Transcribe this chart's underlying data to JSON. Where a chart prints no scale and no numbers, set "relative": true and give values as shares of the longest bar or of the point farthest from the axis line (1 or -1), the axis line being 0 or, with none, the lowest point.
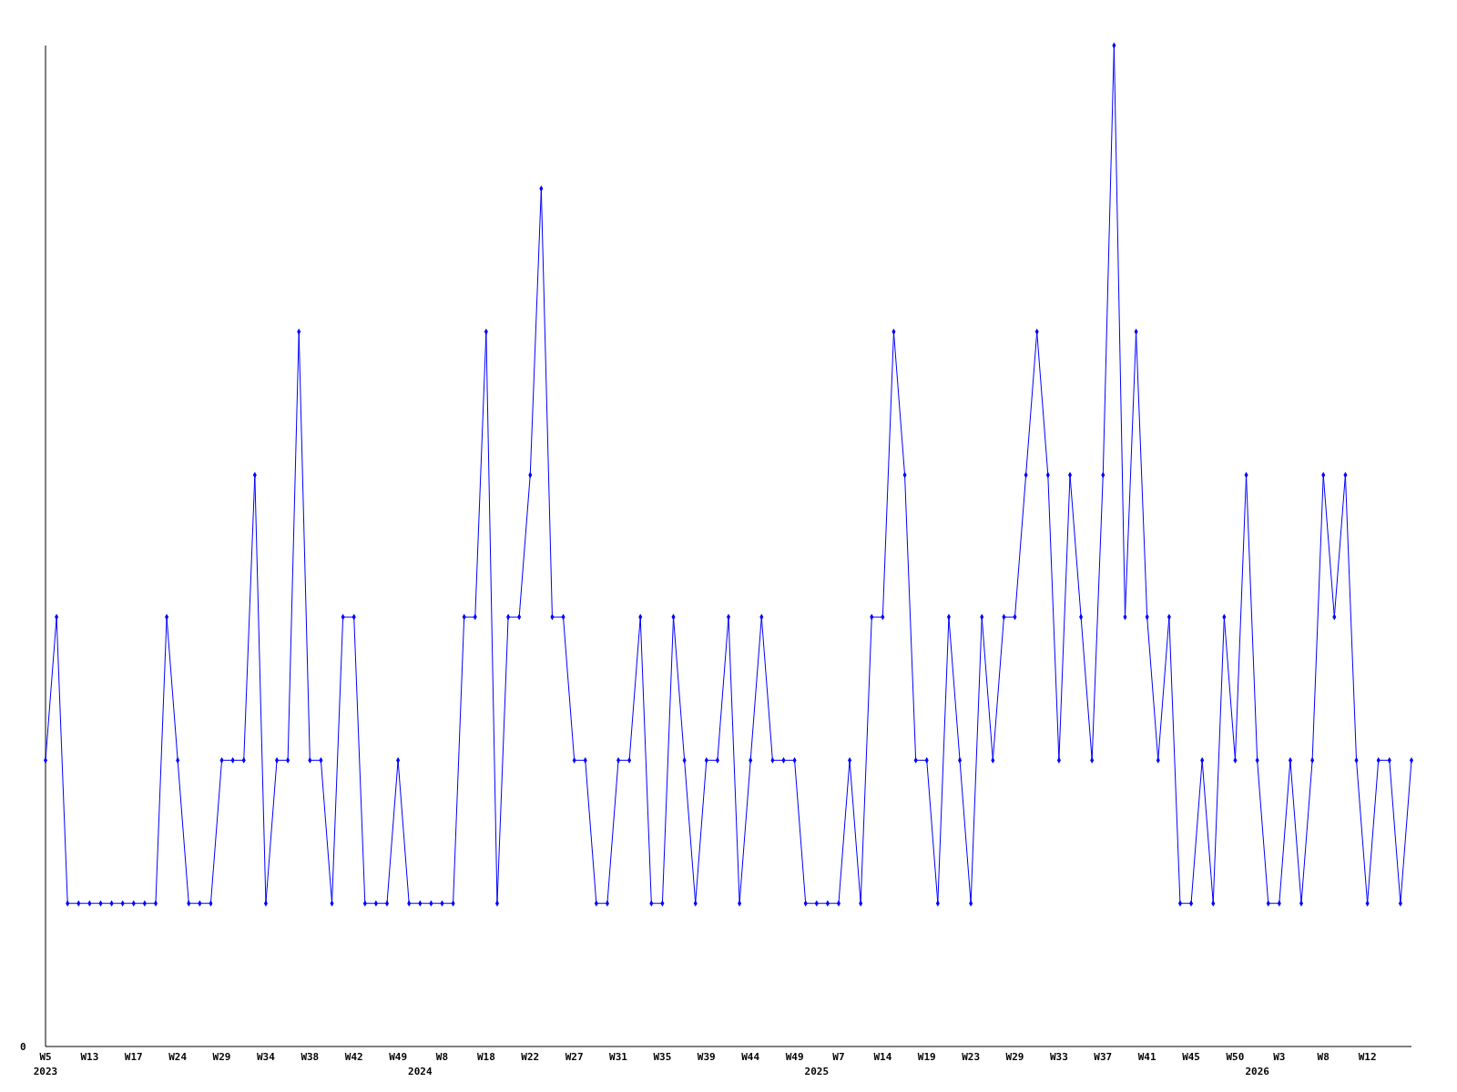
{
  "chart_data": {
    "type": "line",
    "relative": true,
    "marker": "diamond",
    "grid": false,
    "annotations": [
      "0"
    ],
    "categories": [
      "W5\n2023",
      null,
      null,
      null,
      "W13",
      null,
      null,
      null,
      "W17",
      null,
      null,
      null,
      "W24",
      null,
      null,
      null,
      "W29",
      null,
      null,
      null,
      "W34",
      null,
      null,
      null,
      "W38",
      null,
      null,
      null,
      "W42",
      null,
      null,
      null,
      "W49",
      null,
      "\n2024",
      null,
      "W8",
      null,
      null,
      null,
      "W18",
      null,
      null,
      null,
      "W22",
      null,
      null,
      null,
      "W27",
      null,
      null,
      null,
      "W31",
      null,
      null,
      null,
      "W35",
      null,
      null,
      null,
      "W39",
      null,
      null,
      null,
      "W44",
      null,
      null,
      null,
      "W49",
      null,
      "\n2025",
      null,
      "W7",
      null,
      null,
      null,
      "W14",
      null,
      null,
      null,
      "W19",
      null,
      null,
      null,
      "W23",
      null,
      null,
      null,
      "W29",
      null,
      null,
      null,
      "W33",
      null,
      null,
      null,
      "W37",
      null,
      null,
      null,
      "W41",
      null,
      null,
      null,
      "W45",
      null,
      null,
      null,
      "W50",
      null,
      "\n2026",
      null,
      "W3",
      null,
      null,
      null,
      "W8",
      null,
      null,
      null,
      "W12",
      null,
      null,
      null,
      null
    ],
    "series": [
      {
        "color": "#0000ff",
        "values": [
          0.286,
          0.429,
          0.143,
          0.143,
          0.143,
          0.143,
          0.143,
          0.143,
          0.143,
          0.143,
          0.143,
          0.429,
          0.286,
          0.143,
          0.143,
          0.143,
          0.286,
          0.286,
          0.286,
          0.571,
          0.143,
          0.286,
          0.286,
          0.714,
          0.286,
          0.286,
          0.143,
          0.429,
          0.429,
          0.143,
          0.143,
          0.143,
          0.286,
          0.143,
          0.143,
          0.143,
          0.143,
          0.143,
          0.429,
          0.429,
          0.714,
          0.143,
          0.429,
          0.429,
          0.571,
          0.857,
          0.429,
          0.429,
          0.286,
          0.286,
          0.143,
          0.143,
          0.286,
          0.286,
          0.429,
          0.143,
          0.143,
          0.429,
          0.286,
          0.143,
          0.286,
          0.286,
          0.429,
          0.143,
          0.286,
          0.429,
          0.286,
          0.286,
          0.286,
          0.143,
          0.143,
          0.143,
          0.143,
          0.286,
          0.143,
          0.429,
          0.429,
          0.714,
          0.571,
          0.286,
          0.286,
          0.143,
          0.429,
          0.286,
          0.143,
          0.429,
          0.286,
          0.429,
          0.429,
          0.571,
          0.714,
          0.571,
          0.286,
          0.571,
          0.429,
          0.286,
          0.571,
          1,
          0.429,
          0.714,
          0.429,
          0.286,
          0.429,
          0.143,
          0.143,
          0.286,
          0.143,
          0.429,
          0.286,
          0.571,
          0.286,
          0.143,
          0.143,
          0.286,
          0.143,
          0.286,
          0.571,
          0.429,
          0.571,
          0.286,
          0.143,
          0.286,
          0.286,
          0.143,
          0.286
        ]
      }
    ]
  }
}
